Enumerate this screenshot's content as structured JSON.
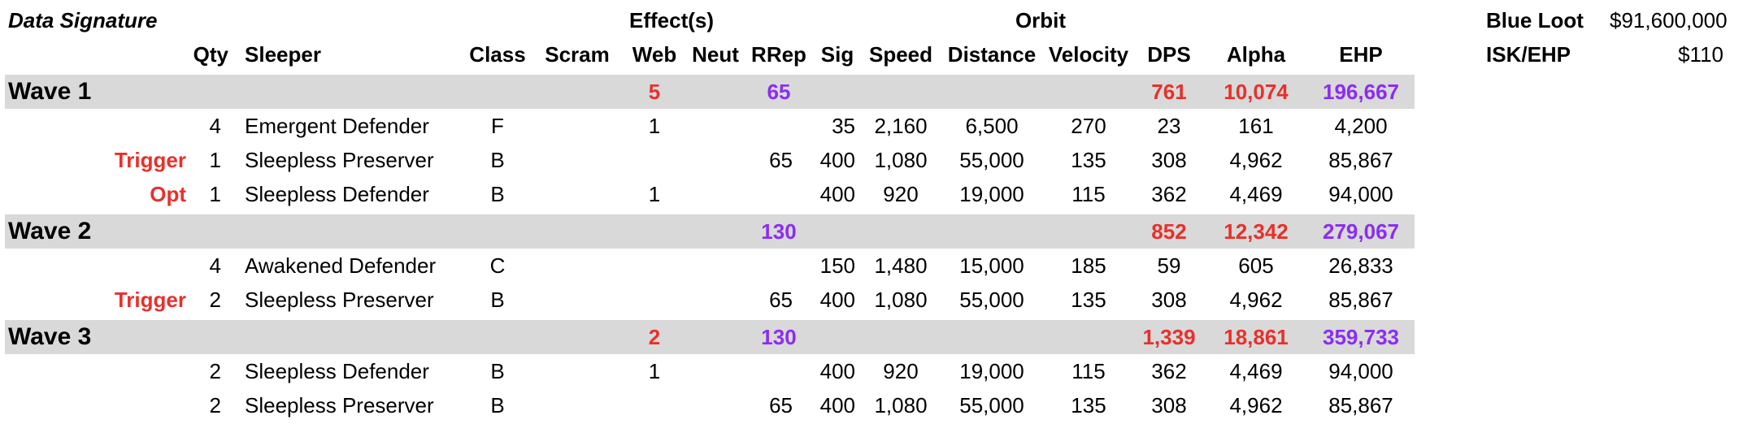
{
  "title": "Data Signature",
  "headers": {
    "effects_group": "Effect(s)",
    "orbit_group": "Orbit",
    "qty": "Qty",
    "sleeper": "Sleeper",
    "class": "Class",
    "scram": "Scram",
    "web": "Web",
    "neut": "Neut",
    "rrep": "RRep",
    "sig": "Sig",
    "speed": "Speed",
    "distance": "Distance",
    "velocity": "Velocity",
    "dps": "DPS",
    "alpha": "Alpha",
    "ehp": "EHP"
  },
  "summary": {
    "blue_loot_label": "Blue Loot",
    "blue_loot_value": "$91,600,000",
    "isk_ehp_label": "ISK/EHP",
    "isk_ehp_value": "$110"
  },
  "colors": {
    "band": "#d9d9d9",
    "red": "#e8302a",
    "purple": "#8b2cf5"
  },
  "waves": [
    {
      "name": "Wave 1",
      "web": "5",
      "rrep": "65",
      "dps": "761",
      "alpha": "10,074",
      "ehp": "196,667",
      "rows": [
        {
          "tag": "",
          "qty": "4",
          "sleeper": "Emergent Defender",
          "class": "F",
          "web": "1",
          "rrep": "",
          "sig": "35",
          "speed": "2,160",
          "distance": "6,500",
          "velocity": "270",
          "dps": "23",
          "alpha": "161",
          "ehp": "4,200"
        },
        {
          "tag": "Trigger",
          "qty": "1",
          "sleeper": "Sleepless Preserver",
          "class": "B",
          "web": "",
          "rrep": "65",
          "sig": "400",
          "speed": "1,080",
          "distance": "55,000",
          "velocity": "135",
          "dps": "308",
          "alpha": "4,962",
          "ehp": "85,867"
        },
        {
          "tag": "Opt",
          "qty": "1",
          "sleeper": "Sleepless Defender",
          "class": "B",
          "web": "1",
          "rrep": "",
          "sig": "400",
          "speed": "920",
          "distance": "19,000",
          "velocity": "115",
          "dps": "362",
          "alpha": "4,469",
          "ehp": "94,000"
        }
      ]
    },
    {
      "name": "Wave 2",
      "web": "",
      "rrep": "130",
      "dps": "852",
      "alpha": "12,342",
      "ehp": "279,067",
      "rows": [
        {
          "tag": "",
          "qty": "4",
          "sleeper": "Awakened Defender",
          "class": "C",
          "web": "",
          "rrep": "",
          "sig": "150",
          "speed": "1,480",
          "distance": "15,000",
          "velocity": "185",
          "dps": "59",
          "alpha": "605",
          "ehp": "26,833"
        },
        {
          "tag": "Trigger",
          "qty": "2",
          "sleeper": "Sleepless Preserver",
          "class": "B",
          "web": "",
          "rrep": "65",
          "sig": "400",
          "speed": "1,080",
          "distance": "55,000",
          "velocity": "135",
          "dps": "308",
          "alpha": "4,962",
          "ehp": "85,867"
        }
      ]
    },
    {
      "name": "Wave 3",
      "web": "2",
      "rrep": "130",
      "dps": "1,339",
      "alpha": "18,861",
      "ehp": "359,733",
      "rows": [
        {
          "tag": "",
          "qty": "2",
          "sleeper": "Sleepless Defender",
          "class": "B",
          "web": "1",
          "rrep": "",
          "sig": "400",
          "speed": "920",
          "distance": "19,000",
          "velocity": "115",
          "dps": "362",
          "alpha": "4,469",
          "ehp": "94,000"
        },
        {
          "tag": "",
          "qty": "2",
          "sleeper": "Sleepless Preserver",
          "class": "B",
          "web": "",
          "rrep": "65",
          "sig": "400",
          "speed": "1,080",
          "distance": "55,000",
          "velocity": "135",
          "dps": "308",
          "alpha": "4,962",
          "ehp": "85,867"
        }
      ]
    }
  ]
}
